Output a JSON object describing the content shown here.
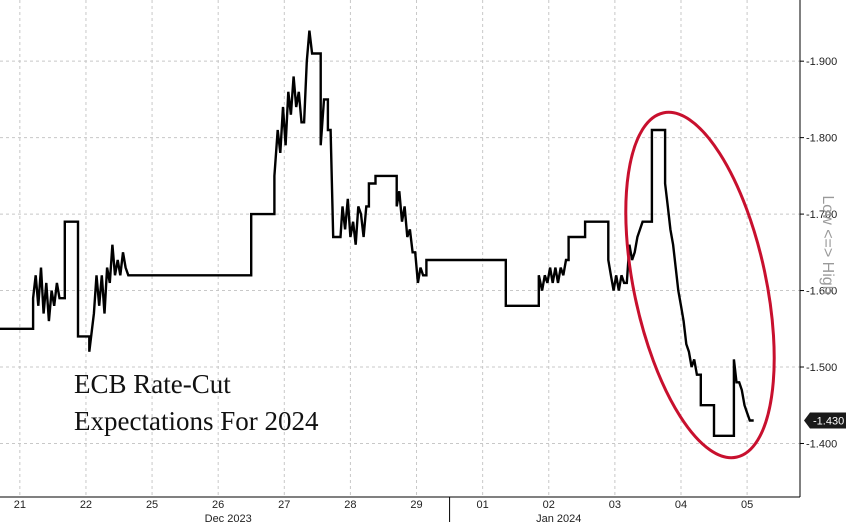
{
  "chart_data": {
    "type": "line",
    "title_lines": [
      "ECB Rate-Cut",
      "Expectations For 2024"
    ],
    "right_axis_label": "Low <=> High",
    "y_tick_labels": [
      "-1.900",
      "-1.800",
      "-1.700",
      "-1.600",
      "-1.500",
      "-1.400"
    ],
    "y_tick_values": [
      190,
      180,
      170,
      160,
      150,
      140
    ],
    "ylim": [
      133,
      198
    ],
    "last_value_label": "-1.430",
    "last_value": 143,
    "x_tick_labels": [
      "21",
      "22",
      "25",
      "26",
      "27",
      "28",
      "29",
      "01",
      "02",
      "03",
      "04",
      "05"
    ],
    "x_tick_index": [
      0,
      1,
      2,
      3,
      4,
      5,
      6,
      7,
      8,
      9,
      10,
      11
    ],
    "month_labels": [
      {
        "label": "Dec 2023",
        "at": 3
      },
      {
        "label": "Jan 2024",
        "at": 8
      }
    ],
    "xlim": [
      -0.3,
      11.8
    ],
    "annotation": "red ellipse around the Jan 03–05 move",
    "annotation_color": "#c8102e",
    "series": [
      {
        "points": [
          [
            -0.3,
            155
          ],
          [
            0.2,
            155
          ],
          [
            0.2,
            159
          ],
          [
            0.24,
            162
          ],
          [
            0.28,
            158
          ],
          [
            0.32,
            163
          ],
          [
            0.36,
            157
          ],
          [
            0.4,
            161
          ],
          [
            0.44,
            156
          ],
          [
            0.48,
            160
          ],
          [
            0.52,
            158
          ],
          [
            0.56,
            161
          ],
          [
            0.6,
            159
          ],
          [
            0.68,
            159
          ],
          [
            0.68,
            169
          ],
          [
            0.88,
            169
          ],
          [
            0.88,
            154
          ],
          [
            1.05,
            154
          ],
          [
            1.05,
            152
          ],
          [
            1.12,
            157
          ],
          [
            1.16,
            162
          ],
          [
            1.2,
            158
          ],
          [
            1.24,
            162
          ],
          [
            1.28,
            157
          ],
          [
            1.32,
            163
          ],
          [
            1.36,
            161
          ],
          [
            1.4,
            166
          ],
          [
            1.44,
            162
          ],
          [
            1.48,
            164
          ],
          [
            1.52,
            162
          ],
          [
            1.56,
            165
          ],
          [
            1.6,
            163
          ],
          [
            1.64,
            162
          ],
          [
            1.72,
            162
          ],
          [
            3.5,
            162
          ],
          [
            3.5,
            170
          ],
          [
            3.85,
            170
          ],
          [
            3.85,
            175
          ],
          [
            3.9,
            181
          ],
          [
            3.94,
            178
          ],
          [
            3.98,
            184
          ],
          [
            4.02,
            179
          ],
          [
            4.06,
            186
          ],
          [
            4.1,
            183
          ],
          [
            4.14,
            188
          ],
          [
            4.18,
            184
          ],
          [
            4.22,
            186
          ],
          [
            4.26,
            182
          ],
          [
            4.3,
            182
          ],
          [
            4.34,
            190
          ],
          [
            4.38,
            194
          ],
          [
            4.42,
            191
          ],
          [
            4.55,
            191
          ],
          [
            4.55,
            179
          ],
          [
            4.6,
            185
          ],
          [
            4.66,
            185
          ],
          [
            4.66,
            181
          ],
          [
            4.7,
            181
          ],
          [
            4.74,
            167
          ],
          [
            4.85,
            167
          ],
          [
            4.88,
            171
          ],
          [
            4.92,
            168
          ],
          [
            4.96,
            172
          ],
          [
            5.0,
            167
          ],
          [
            5.04,
            169
          ],
          [
            5.08,
            166
          ],
          [
            5.12,
            171
          ],
          [
            5.16,
            170
          ],
          [
            5.2,
            167
          ],
          [
            5.24,
            171
          ],
          [
            5.28,
            171
          ],
          [
            5.28,
            174
          ],
          [
            5.38,
            174
          ],
          [
            5.38,
            175
          ],
          [
            5.7,
            175
          ],
          [
            5.7,
            171
          ],
          [
            5.74,
            173
          ],
          [
            5.78,
            169
          ],
          [
            5.82,
            171
          ],
          [
            5.86,
            167
          ],
          [
            5.9,
            168
          ],
          [
            5.94,
            165
          ],
          [
            5.98,
            165
          ],
          [
            6.02,
            161
          ],
          [
            6.06,
            163
          ],
          [
            6.1,
            162
          ],
          [
            6.15,
            162
          ],
          [
            6.15,
            164
          ],
          [
            7.35,
            164
          ],
          [
            7.35,
            158
          ],
          [
            7.85,
            158
          ],
          [
            7.85,
            162
          ],
          [
            7.9,
            160
          ],
          [
            7.94,
            162
          ],
          [
            7.98,
            161
          ],
          [
            8.02,
            163
          ],
          [
            8.06,
            161
          ],
          [
            8.1,
            163
          ],
          [
            8.14,
            161
          ],
          [
            8.18,
            163
          ],
          [
            8.22,
            162
          ],
          [
            8.26,
            164
          ],
          [
            8.3,
            164
          ],
          [
            8.3,
            167
          ],
          [
            8.55,
            167
          ],
          [
            8.55,
            169
          ],
          [
            8.9,
            169
          ],
          [
            8.9,
            164
          ],
          [
            8.94,
            162
          ],
          [
            8.98,
            160
          ],
          [
            9.02,
            162
          ],
          [
            9.06,
            160
          ],
          [
            9.1,
            162
          ],
          [
            9.14,
            161
          ],
          [
            9.18,
            161
          ],
          [
            9.22,
            166
          ],
          [
            9.26,
            164
          ],
          [
            9.3,
            165
          ],
          [
            9.34,
            167
          ],
          [
            9.38,
            168
          ],
          [
            9.42,
            169
          ],
          [
            9.56,
            169
          ],
          [
            9.56,
            181
          ],
          [
            9.76,
            181
          ],
          [
            9.76,
            174
          ],
          [
            9.8,
            171
          ],
          [
            9.84,
            168
          ],
          [
            9.88,
            166
          ],
          [
            9.92,
            163
          ],
          [
            9.96,
            160
          ],
          [
            10.0,
            158
          ],
          [
            10.04,
            156
          ],
          [
            10.08,
            153
          ],
          [
            10.12,
            152
          ],
          [
            10.16,
            150
          ],
          [
            10.2,
            151
          ],
          [
            10.24,
            149
          ],
          [
            10.3,
            149
          ],
          [
            10.3,
            145
          ],
          [
            10.5,
            145
          ],
          [
            10.5,
            141
          ],
          [
            10.8,
            141
          ],
          [
            10.8,
            151
          ],
          [
            10.84,
            148
          ],
          [
            10.88,
            148
          ],
          [
            10.92,
            147
          ],
          [
            10.96,
            145
          ],
          [
            11.0,
            144
          ],
          [
            11.04,
            143
          ],
          [
            11.1,
            143
          ]
        ]
      }
    ]
  }
}
